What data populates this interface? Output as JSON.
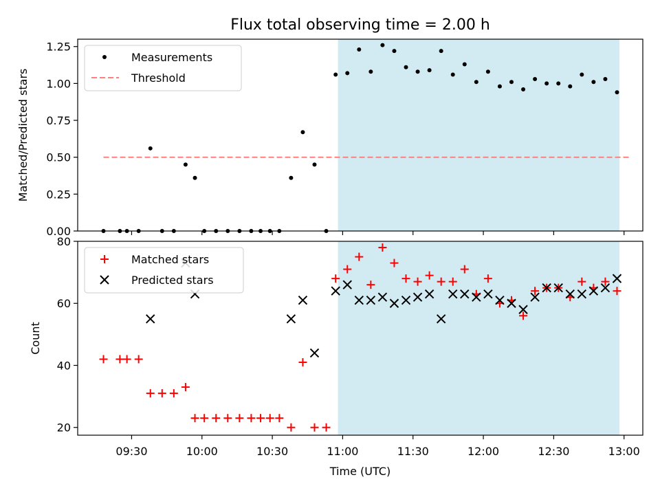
{
  "figure_title": "Flux total observing time = 2.00 h",
  "colors": {
    "measure": "#000000",
    "threshold": "#ff7f7f",
    "matched": "#ff0000",
    "predicted": "#000000",
    "span": "#add8e6"
  },
  "chart_data": [
    {
      "type": "scatter",
      "panel": "top",
      "ylabel": "Matched/Predicted stars",
      "ylim": [
        0,
        1.3
      ],
      "yticks": [
        0.0,
        0.25,
        0.5,
        0.75,
        1.0,
        1.25
      ],
      "ytick_labels": [
        "0.00",
        "0.25",
        "0.50",
        "0.75",
        "1.00",
        "1.25"
      ],
      "legend": {
        "placement": "upper-left",
        "entries": [
          "Measurements",
          "Threshold"
        ]
      },
      "threshold": {
        "name": "Threshold",
        "y": 0.5,
        "x_range": [
          "09:18",
          "13:03"
        ]
      },
      "observing_span": [
        "10:58",
        "12:58"
      ],
      "series": [
        {
          "name": "Measurements",
          "x": [
            "09:18",
            "09:25",
            "09:28",
            "09:33",
            "09:38",
            "09:43",
            "09:48",
            "09:53",
            "09:57",
            "10:01",
            "10:06",
            "10:11",
            "10:16",
            "10:21",
            "10:25",
            "10:29",
            "10:33",
            "10:38",
            "10:43",
            "10:48",
            "10:53",
            "10:57",
            "11:02",
            "11:07",
            "11:12",
            "11:17",
            "11:22",
            "11:27",
            "11:32",
            "11:37",
            "11:42",
            "11:47",
            "11:52",
            "11:57",
            "12:02",
            "12:07",
            "12:12",
            "12:17",
            "12:22",
            "12:27",
            "12:32",
            "12:37",
            "12:42",
            "12:47",
            "12:52",
            "12:57"
          ],
          "y": [
            0,
            0,
            0,
            0,
            0.56,
            0,
            0,
            0.45,
            0.36,
            0,
            0,
            0,
            0,
            0,
            0,
            0,
            0,
            0.36,
            0.67,
            0.45,
            0,
            1.06,
            1.07,
            1.23,
            1.08,
            1.26,
            1.22,
            1.11,
            1.08,
            1.09,
            1.22,
            1.06,
            1.13,
            1.01,
            1.08,
            0.98,
            1.01,
            0.96,
            1.03,
            1.0,
            1.0,
            0.98,
            1.06,
            1.01,
            1.03,
            0.94
          ]
        }
      ]
    },
    {
      "type": "scatter",
      "panel": "bottom",
      "xlabel": "Time (UTC)",
      "ylabel": "Count",
      "ylim": [
        17.5,
        80
      ],
      "yticks": [
        20,
        40,
        60,
        80
      ],
      "ytick_labels": [
        "20",
        "40",
        "60",
        "80"
      ],
      "xticks": [
        "09:30",
        "10:00",
        "10:30",
        "11:00",
        "11:30",
        "12:00",
        "12:30",
        "13:00"
      ],
      "legend": {
        "placement": "upper-left",
        "entries": [
          "Matched stars",
          "Predicted stars"
        ]
      },
      "observing_span": [
        "10:58",
        "12:58"
      ],
      "series": [
        {
          "name": "Matched stars",
          "x": [
            "09:18",
            "09:25",
            "09:28",
            "09:33",
            "09:38",
            "09:43",
            "09:48",
            "09:53",
            "09:57",
            "10:01",
            "10:06",
            "10:11",
            "10:16",
            "10:21",
            "10:25",
            "10:29",
            "10:33",
            "10:38",
            "10:43",
            "10:48",
            "10:53",
            "10:57",
            "11:02",
            "11:07",
            "11:12",
            "11:17",
            "11:22",
            "11:27",
            "11:32",
            "11:37",
            "11:42",
            "11:47",
            "11:52",
            "11:57",
            "12:02",
            "12:07",
            "12:12",
            "12:17",
            "12:22",
            "12:27",
            "12:32",
            "12:37",
            "12:42",
            "12:47",
            "12:52",
            "12:57"
          ],
          "y": [
            42,
            42,
            42,
            42,
            31,
            31,
            31,
            33,
            23,
            23,
            23,
            23,
            23,
            23,
            23,
            23,
            23,
            20,
            41,
            20,
            20,
            68,
            71,
            75,
            66,
            78,
            73,
            68,
            67,
            69,
            67,
            67,
            71,
            63,
            68,
            60,
            61,
            56,
            64,
            65,
            65,
            62,
            67,
            65,
            67,
            64
          ]
        },
        {
          "name": "Predicted stars",
          "x": [
            "09:38",
            "09:53",
            "09:57",
            "10:38",
            "10:43",
            "10:48",
            "10:57",
            "11:02",
            "11:07",
            "11:12",
            "11:17",
            "11:22",
            "11:27",
            "11:32",
            "11:37",
            "11:42",
            "11:47",
            "11:52",
            "11:57",
            "12:02",
            "12:07",
            "12:12",
            "12:17",
            "12:22",
            "12:27",
            "12:32",
            "12:37",
            "12:42",
            "12:47",
            "12:52",
            "12:57"
          ],
          "y": [
            55,
            73,
            63,
            55,
            61,
            44,
            64,
            66,
            61,
            61,
            62,
            60,
            61,
            62,
            63,
            55,
            63,
            63,
            62,
            63,
            61,
            60,
            58,
            62,
            65,
            65,
            63,
            63,
            64,
            65,
            68
          ]
        }
      ]
    }
  ]
}
